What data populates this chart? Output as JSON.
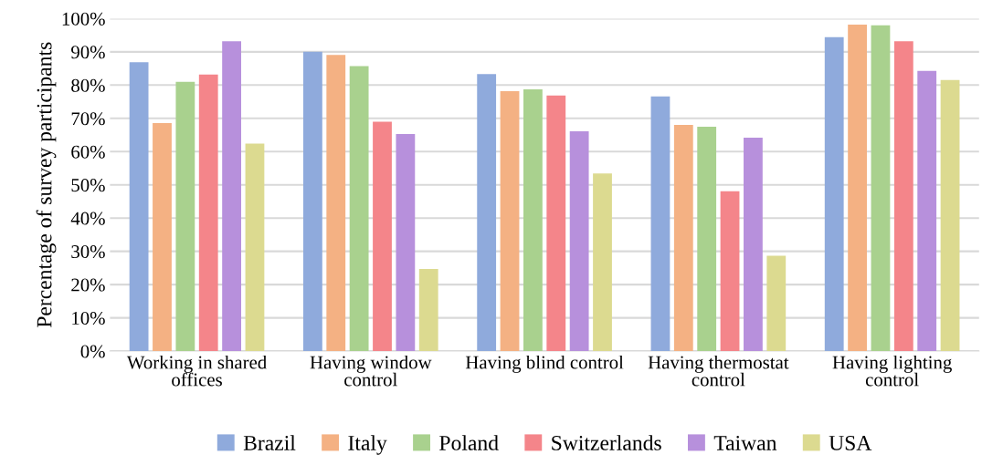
{
  "chart_data": {
    "type": "bar",
    "ylabel": "Percentage of survey participants",
    "categories": [
      "Working in shared offices",
      "Having window control",
      "Having blind control",
      "Having thermostat control",
      "Having lighting control"
    ],
    "series": [
      {
        "name": "Brazil",
        "color": "#8faadc",
        "values": [
          86.9,
          90.0,
          83.3,
          76.6,
          94.4
        ]
      },
      {
        "name": "Italy",
        "color": "#f4b183",
        "values": [
          68.6,
          89.1,
          78.2,
          68.0,
          98.2
        ]
      },
      {
        "name": "Poland",
        "color": "#a9d18e",
        "values": [
          81.0,
          85.7,
          78.7,
          67.5,
          98.0
        ]
      },
      {
        "name": "Switzerlands",
        "color": "#f4858a",
        "values": [
          83.2,
          69.0,
          76.9,
          48.1,
          93.2
        ]
      },
      {
        "name": "Taiwan",
        "color": "#b790dc",
        "values": [
          93.2,
          65.3,
          66.1,
          64.2,
          84.3
        ]
      },
      {
        "name": "USA",
        "color": "#dcda90",
        "values": [
          62.4,
          24.7,
          53.4,
          28.7,
          81.5
        ]
      }
    ],
    "ylim": [
      0,
      100
    ],
    "yticks": [
      {
        "value": 0,
        "label": "0%"
      },
      {
        "value": 10,
        "label": "10%"
      },
      {
        "value": 20,
        "label": "20%"
      },
      {
        "value": 30,
        "label": "30%"
      },
      {
        "value": 40,
        "label": "40%"
      },
      {
        "value": 50,
        "label": "50%"
      },
      {
        "value": 60,
        "label": "60%"
      },
      {
        "value": 70,
        "label": "70%"
      },
      {
        "value": 80,
        "label": "80%"
      },
      {
        "value": 90,
        "label": "90%"
      },
      {
        "value": 100,
        "label": "100%"
      }
    ],
    "grid": "y",
    "legend": "bottom"
  }
}
